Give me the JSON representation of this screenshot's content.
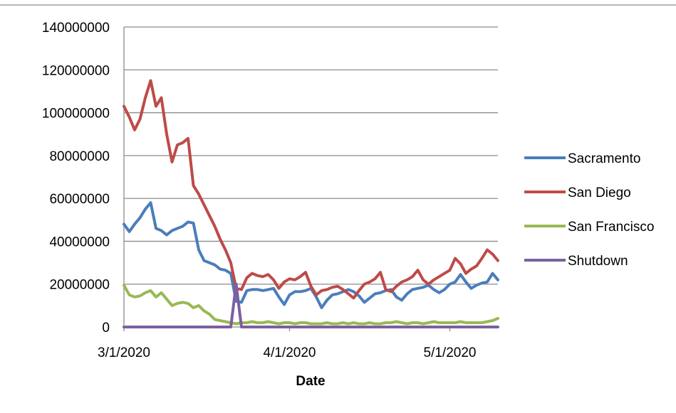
{
  "chart_data": {
    "type": "line",
    "title": "",
    "xlabel": "Date",
    "ylabel": "",
    "x_axis": {
      "type": "date",
      "range": [
        "2020-03-01",
        "2020-05-10"
      ],
      "tick_labels": [
        {
          "date": "2020-03-01",
          "label": "3/1/2020"
        },
        {
          "date": "2020-04-01",
          "label": "4/1/2020"
        },
        {
          "date": "2020-05-01",
          "label": "5/1/2020"
        }
      ]
    },
    "y_axis": {
      "range": [
        0,
        140000000
      ],
      "ticks": [
        0,
        20000000,
        40000000,
        60000000,
        80000000,
        100000000,
        120000000,
        140000000
      ],
      "tick_labels": [
        "0",
        "20000000",
        "40000000",
        "60000000",
        "80000000",
        "100000000",
        "120000000",
        "140000000"
      ]
    },
    "grid": true,
    "legend_position": "right",
    "x": [
      "2020-03-01",
      "2020-03-02",
      "2020-03-03",
      "2020-03-04",
      "2020-03-05",
      "2020-03-06",
      "2020-03-07",
      "2020-03-08",
      "2020-03-09",
      "2020-03-10",
      "2020-03-11",
      "2020-03-12",
      "2020-03-13",
      "2020-03-14",
      "2020-03-15",
      "2020-03-16",
      "2020-03-17",
      "2020-03-18",
      "2020-03-19",
      "2020-03-20",
      "2020-03-21",
      "2020-03-22",
      "2020-03-23",
      "2020-03-24",
      "2020-03-25",
      "2020-03-26",
      "2020-03-27",
      "2020-03-28",
      "2020-03-29",
      "2020-03-30",
      "2020-03-31",
      "2020-04-01",
      "2020-04-02",
      "2020-04-03",
      "2020-04-04",
      "2020-04-05",
      "2020-04-06",
      "2020-04-07",
      "2020-04-08",
      "2020-04-09",
      "2020-04-10",
      "2020-04-11",
      "2020-04-12",
      "2020-04-13",
      "2020-04-14",
      "2020-04-15",
      "2020-04-16",
      "2020-04-17",
      "2020-04-18",
      "2020-04-19",
      "2020-04-20",
      "2020-04-21",
      "2020-04-22",
      "2020-04-23",
      "2020-04-24",
      "2020-04-25",
      "2020-04-26",
      "2020-04-27",
      "2020-04-28",
      "2020-04-29",
      "2020-04-30",
      "2020-05-01",
      "2020-05-02",
      "2020-05-03",
      "2020-05-04",
      "2020-05-05",
      "2020-05-06",
      "2020-05-07",
      "2020-05-08",
      "2020-05-09",
      "2020-05-10"
    ],
    "series": [
      {
        "name": "Sacramento",
        "color": "#4a7ebb",
        "values": [
          48000000,
          44500000,
          48000000,
          51000000,
          55000000,
          58000000,
          46000000,
          45000000,
          43000000,
          45000000,
          46000000,
          47000000,
          49000000,
          48500000,
          36000000,
          31000000,
          30000000,
          29000000,
          27000000,
          26500000,
          25000000,
          12000000,
          11500000,
          17000000,
          17500000,
          17500000,
          17000000,
          17500000,
          18000000,
          14000000,
          10500000,
          15000000,
          16500000,
          16500000,
          17000000,
          18000000,
          14000000,
          9000000,
          12500000,
          15000000,
          15500000,
          16500000,
          17500000,
          16500000,
          14500000,
          11500000,
          13500000,
          15500000,
          16000000,
          17000000,
          17500000,
          14000000,
          12500000,
          15500000,
          17500000,
          18000000,
          18500000,
          19500000,
          17500000,
          16000000,
          17500000,
          20000000,
          21000000,
          24500000,
          21000000,
          18000000,
          19500000,
          20500000,
          21000000,
          25000000,
          22000000
        ]
      },
      {
        "name": "San Diego",
        "color": "#be4b48",
        "values": [
          103000000,
          98000000,
          92000000,
          97000000,
          107000000,
          115000000,
          103000000,
          107000000,
          90000000,
          77000000,
          85000000,
          86000000,
          88000000,
          66000000,
          62000000,
          57000000,
          52000000,
          47000000,
          41000000,
          36000000,
          30000000,
          18000000,
          17500000,
          23000000,
          25000000,
          24000000,
          23500000,
          24500000,
          22000000,
          18000000,
          21000000,
          22500000,
          22000000,
          23500000,
          25500000,
          19000000,
          15000000,
          17000000,
          17500000,
          18500000,
          19000000,
          17500000,
          15500000,
          13500000,
          17000000,
          20000000,
          21000000,
          22500000,
          25500000,
          17500000,
          16500000,
          19000000,
          21000000,
          22000000,
          23500000,
          26500000,
          22000000,
          20000000,
          22000000,
          23500000,
          25000000,
          26500000,
          32000000,
          29500000,
          25000000,
          27000000,
          28500000,
          32000000,
          36000000,
          34000000,
          31000000
        ]
      },
      {
        "name": "San Francisco",
        "color": "#98b954",
        "values": [
          19500000,
          15000000,
          14000000,
          14500000,
          16000000,
          17000000,
          14000000,
          16000000,
          13000000,
          10000000,
          11000000,
          11500000,
          11000000,
          9000000,
          10000000,
          7500000,
          6000000,
          3500000,
          3000000,
          2500000,
          2000000,
          1500000,
          2000000,
          2000000,
          2500000,
          2000000,
          2000000,
          2500000,
          2000000,
          1500000,
          2000000,
          2000000,
          1500000,
          2000000,
          2000000,
          1500000,
          1500000,
          1500000,
          2000000,
          1500000,
          1500000,
          2000000,
          1500000,
          2000000,
          1500000,
          1500000,
          2000000,
          1500000,
          1500000,
          2000000,
          2000000,
          2500000,
          2000000,
          1500000,
          2000000,
          2000000,
          1500000,
          2000000,
          2500000,
          2000000,
          2000000,
          2000000,
          2000000,
          2500000,
          2000000,
          2000000,
          2000000,
          2000000,
          2500000,
          3000000,
          4000000
        ]
      },
      {
        "name": "Shutdown",
        "color": "#7d5fa0",
        "values": [
          0,
          0,
          0,
          0,
          0,
          0,
          0,
          0,
          0,
          0,
          0,
          0,
          0,
          0,
          0,
          0,
          0,
          0,
          0,
          0,
          0,
          20000000,
          0,
          0,
          0,
          0,
          0,
          0,
          0,
          0,
          0,
          0,
          0,
          0,
          0,
          0,
          0,
          0,
          0,
          0,
          0,
          0,
          0,
          0,
          0,
          0,
          0,
          0,
          0,
          0,
          0,
          0,
          0,
          0,
          0,
          0,
          0,
          0,
          0,
          0,
          0,
          0,
          0,
          0,
          0,
          0,
          0,
          0,
          0,
          0,
          0
        ]
      }
    ]
  }
}
